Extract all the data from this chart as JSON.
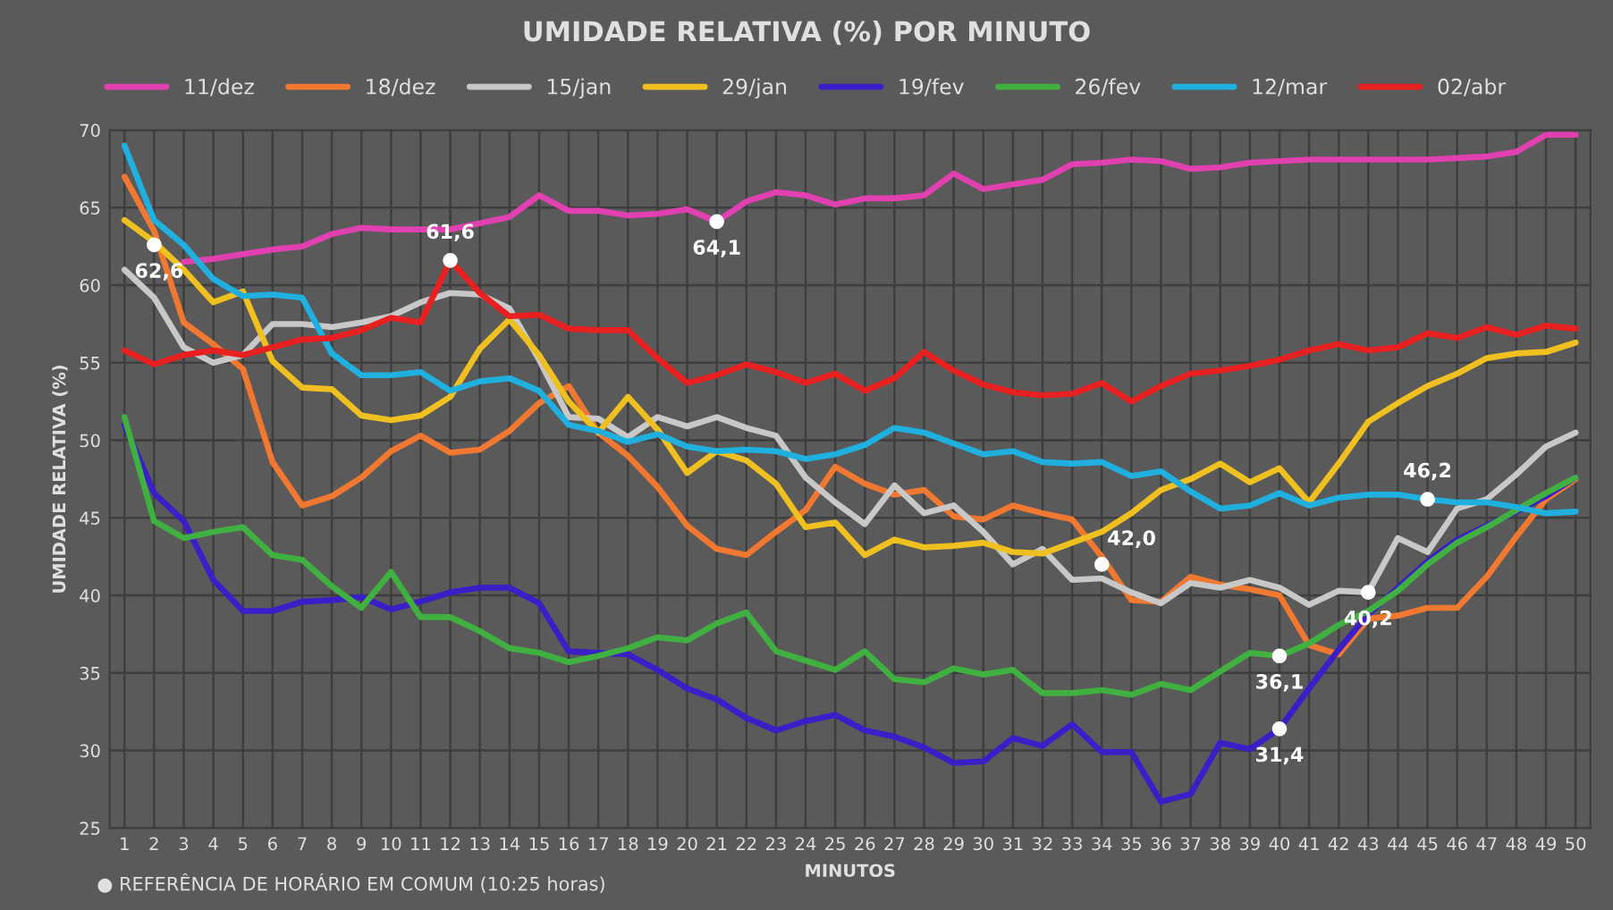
{
  "chart_data": {
    "type": "line",
    "title": "UMIDADE RELATIVA (%) POR MINUTO",
    "xlabel": "MINUTOS",
    "ylabel": "UMIDADE RELATIVA (%)",
    "categories": [
      "1",
      "2",
      "3",
      "4",
      "5",
      "6",
      "7",
      "8",
      "9",
      "10",
      "11",
      "12",
      "13",
      "14",
      "15",
      "16",
      "17",
      "18",
      "19",
      "20",
      "21",
      "22",
      "23",
      "24",
      "25",
      "26",
      "27",
      "28",
      "29",
      "30",
      "31",
      "32",
      "33",
      "34",
      "35",
      "36",
      "37",
      "38",
      "39",
      "40",
      "41",
      "42",
      "43",
      "44",
      "45",
      "46",
      "47",
      "48",
      "49",
      "50"
    ],
    "ylim": [
      25,
      70
    ],
    "yticks": [
      25,
      30,
      35,
      40,
      45,
      50,
      55,
      60,
      65,
      70
    ],
    "grid": true,
    "legend": "top",
    "marker": "none",
    "line_style": "solid",
    "series": [
      {
        "name": "11/dez",
        "color": "#e040b0",
        "values": [
          null,
          null,
          61.5,
          61.7,
          62.0,
          62.3,
          62.5,
          63.3,
          63.7,
          63.6,
          63.6,
          63.6,
          64.0,
          64.4,
          65.8,
          64.8,
          64.8,
          64.5,
          64.6,
          64.9,
          64.1,
          65.4,
          66.0,
          65.8,
          65.2,
          65.6,
          65.6,
          65.8,
          67.2,
          66.2,
          66.5,
          66.8,
          67.8,
          67.9,
          68.1,
          68.0,
          67.5,
          67.6,
          67.9,
          68.0,
          68.1,
          68.1,
          68.1,
          68.1,
          68.1,
          68.2,
          68.3,
          68.6,
          69.7,
          69.7
        ]
      },
      {
        "name": "18/dez",
        "color": "#f07830",
        "values": [
          67.0,
          63.5,
          57.6,
          56.2,
          54.6,
          48.6,
          45.8,
          46.4,
          47.6,
          49.3,
          50.3,
          49.2,
          49.4,
          50.6,
          52.4,
          53.5,
          50.5,
          49.0,
          47.0,
          44.5,
          43.0,
          42.6,
          44.1,
          45.5,
          48.3,
          47.2,
          46.5,
          46.8,
          45.1,
          44.9,
          45.8,
          45.3,
          44.9,
          42.5,
          39.7,
          39.6,
          41.2,
          40.7,
          40.4,
          40.0,
          36.8,
          36.2,
          38.5,
          38.7,
          39.2,
          39.2,
          41.2,
          43.8,
          46.2,
          47.5
        ]
      },
      {
        "name": "15/jan",
        "color": "#c8c8c8",
        "values": [
          61.0,
          59.2,
          56.0,
          55.0,
          55.5,
          57.5,
          57.5,
          57.3,
          57.6,
          58.0,
          58.9,
          59.5,
          59.4,
          58.5,
          55.2,
          51.5,
          51.4,
          50.2,
          51.5,
          50.9,
          51.5,
          50.8,
          50.3,
          47.6,
          46.0,
          44.6,
          47.1,
          45.3,
          45.8,
          44.1,
          42.0,
          43.0,
          41.0,
          41.1,
          40.2,
          39.5,
          40.8,
          40.5,
          41.0,
          40.5,
          39.4,
          40.3,
          40.2,
          43.7,
          42.8,
          45.6,
          46.2,
          47.8,
          49.6,
          50.5
        ]
      },
      {
        "name": "29/jan",
        "color": "#f0c020",
        "values": [
          64.2,
          62.8,
          61.0,
          58.9,
          59.6,
          55.1,
          53.4,
          53.3,
          51.6,
          51.3,
          51.6,
          52.8,
          55.9,
          57.8,
          55.5,
          52.5,
          50.5,
          52.8,
          50.7,
          47.9,
          49.3,
          48.7,
          47.2,
          44.4,
          44.7,
          42.6,
          43.6,
          43.1,
          43.2,
          43.4,
          42.8,
          42.7,
          43.4,
          44.1,
          45.3,
          46.8,
          47.5,
          48.5,
          47.3,
          48.2,
          46.0,
          48.5,
          51.2,
          52.4,
          53.5,
          54.3,
          55.3,
          55.6,
          55.7,
          56.3
        ]
      },
      {
        "name": "19/fev",
        "color": "#3a1ec8",
        "values": [
          51.0,
          46.6,
          44.8,
          41.0,
          39.0,
          39.0,
          39.6,
          39.7,
          39.9,
          39.1,
          39.6,
          40.2,
          40.5,
          40.5,
          39.5,
          36.4,
          36.3,
          36.2,
          35.2,
          34.0,
          33.3,
          32.1,
          31.3,
          31.9,
          32.3,
          31.3,
          30.9,
          30.2,
          29.2,
          29.3,
          30.8,
          30.3,
          31.7,
          29.9,
          29.9,
          26.7,
          27.2,
          30.5,
          30.1,
          31.4,
          34.0,
          36.5,
          38.8,
          40.5,
          42.2,
          43.6,
          44.5,
          45.4,
          46.4,
          47.6
        ]
      },
      {
        "name": "26/fev",
        "color": "#40b040",
        "values": [
          51.5,
          44.8,
          43.7,
          44.1,
          44.4,
          42.6,
          42.3,
          40.6,
          39.2,
          41.5,
          38.6,
          38.6,
          37.7,
          36.6,
          36.3,
          35.7,
          36.1,
          36.6,
          37.3,
          37.1,
          38.2,
          38.9,
          36.4,
          35.8,
          35.2,
          36.4,
          34.6,
          34.4,
          35.3,
          34.9,
          35.2,
          33.7,
          33.7,
          33.9,
          33.6,
          34.3,
          33.9,
          35.1,
          36.3,
          36.1,
          36.9,
          38.1,
          39.0,
          40.3,
          42.0,
          43.4,
          44.4,
          45.5,
          46.6,
          47.6
        ]
      },
      {
        "name": "12/mar",
        "color": "#20b0e0",
        "values": [
          69.0,
          64.2,
          62.6,
          60.4,
          59.3,
          59.4,
          59.2,
          55.6,
          54.2,
          54.2,
          54.4,
          53.2,
          53.8,
          54.0,
          53.2,
          51.0,
          50.6,
          49.9,
          50.4,
          49.6,
          49.3,
          49.4,
          49.3,
          48.8,
          49.1,
          49.7,
          50.8,
          50.5,
          49.8,
          49.1,
          49.3,
          48.6,
          48.5,
          48.6,
          47.7,
          48.0,
          46.7,
          45.6,
          45.8,
          46.6,
          45.8,
          46.3,
          46.5,
          46.5,
          46.2,
          46.0,
          46.0,
          45.7,
          45.3,
          45.4
        ]
      },
      {
        "name": "02/abr",
        "color": "#e82020",
        "values": [
          55.8,
          54.9,
          55.5,
          55.8,
          55.5,
          56.0,
          56.5,
          56.6,
          57.1,
          57.9,
          57.6,
          61.6,
          59.5,
          58.0,
          58.1,
          57.2,
          57.1,
          57.1,
          55.3,
          53.7,
          54.2,
          54.9,
          54.4,
          53.7,
          54.3,
          53.2,
          54.0,
          55.7,
          54.5,
          53.6,
          53.1,
          52.9,
          53.0,
          53.7,
          52.5,
          53.5,
          54.3,
          54.5,
          54.8,
          55.2,
          55.8,
          56.2,
          55.8,
          56.0,
          56.9,
          56.6,
          57.3,
          56.8,
          57.4,
          57.2
        ]
      }
    ],
    "annotations": [
      {
        "text": "62,6",
        "x": "2",
        "y": 62.6
      },
      {
        "text": "61,6",
        "x": "12",
        "y": 61.6
      },
      {
        "text": "64,1",
        "x": "21",
        "y": 64.1
      },
      {
        "text": "42,0",
        "x": "34",
        "y": 42.0
      },
      {
        "text": "40,2",
        "x": "43",
        "y": 40.2
      },
      {
        "text": "36,1",
        "x": "40",
        "y": 36.1
      },
      {
        "text": "31,4",
        "x": "40",
        "y": 31.4
      },
      {
        "text": "46,2",
        "x": "45",
        "y": 46.2
      },
      "● REFERÊNCIA DE HORÁRIO EM COMUM (10:25 horas)"
    ]
  }
}
